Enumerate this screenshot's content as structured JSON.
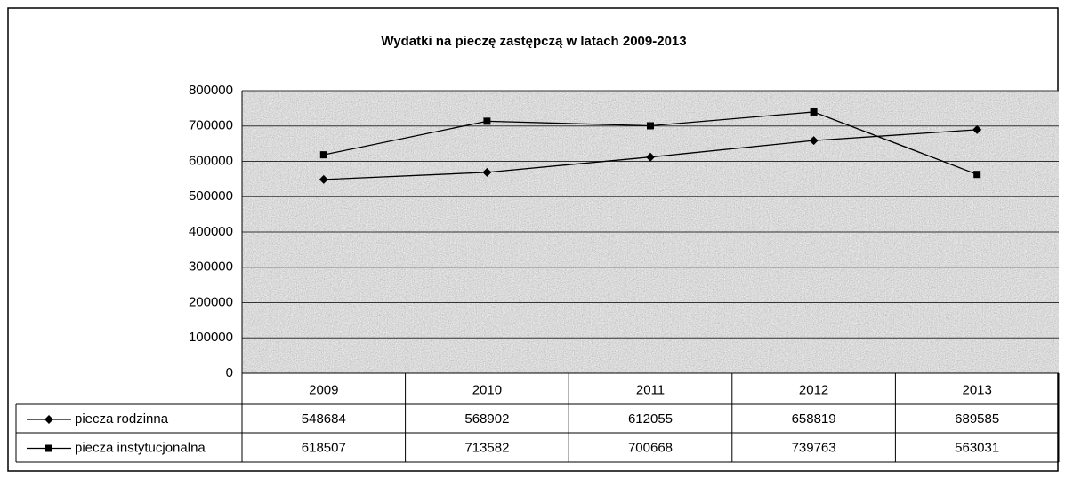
{
  "chart_data": {
    "type": "line",
    "title": "Wydatki na pieczę zastępczą w latach 2009-2013",
    "categories": [
      "2009",
      "2010",
      "2011",
      "2012",
      "2013"
    ],
    "series": [
      {
        "name": "piecza rodzinna",
        "color": "#000000",
        "marker": "diamond",
        "values": [
          548684,
          568902,
          612055,
          658819,
          689585
        ]
      },
      {
        "name": "piecza instytucjonalna",
        "color": "#000000",
        "marker": "square",
        "values": [
          618507,
          713582,
          700668,
          739763,
          563031
        ]
      }
    ],
    "ylim": [
      0,
      800000
    ],
    "yticks": [
      0,
      100000,
      200000,
      300000,
      400000,
      500000,
      600000,
      700000,
      800000
    ],
    "grid": true
  }
}
